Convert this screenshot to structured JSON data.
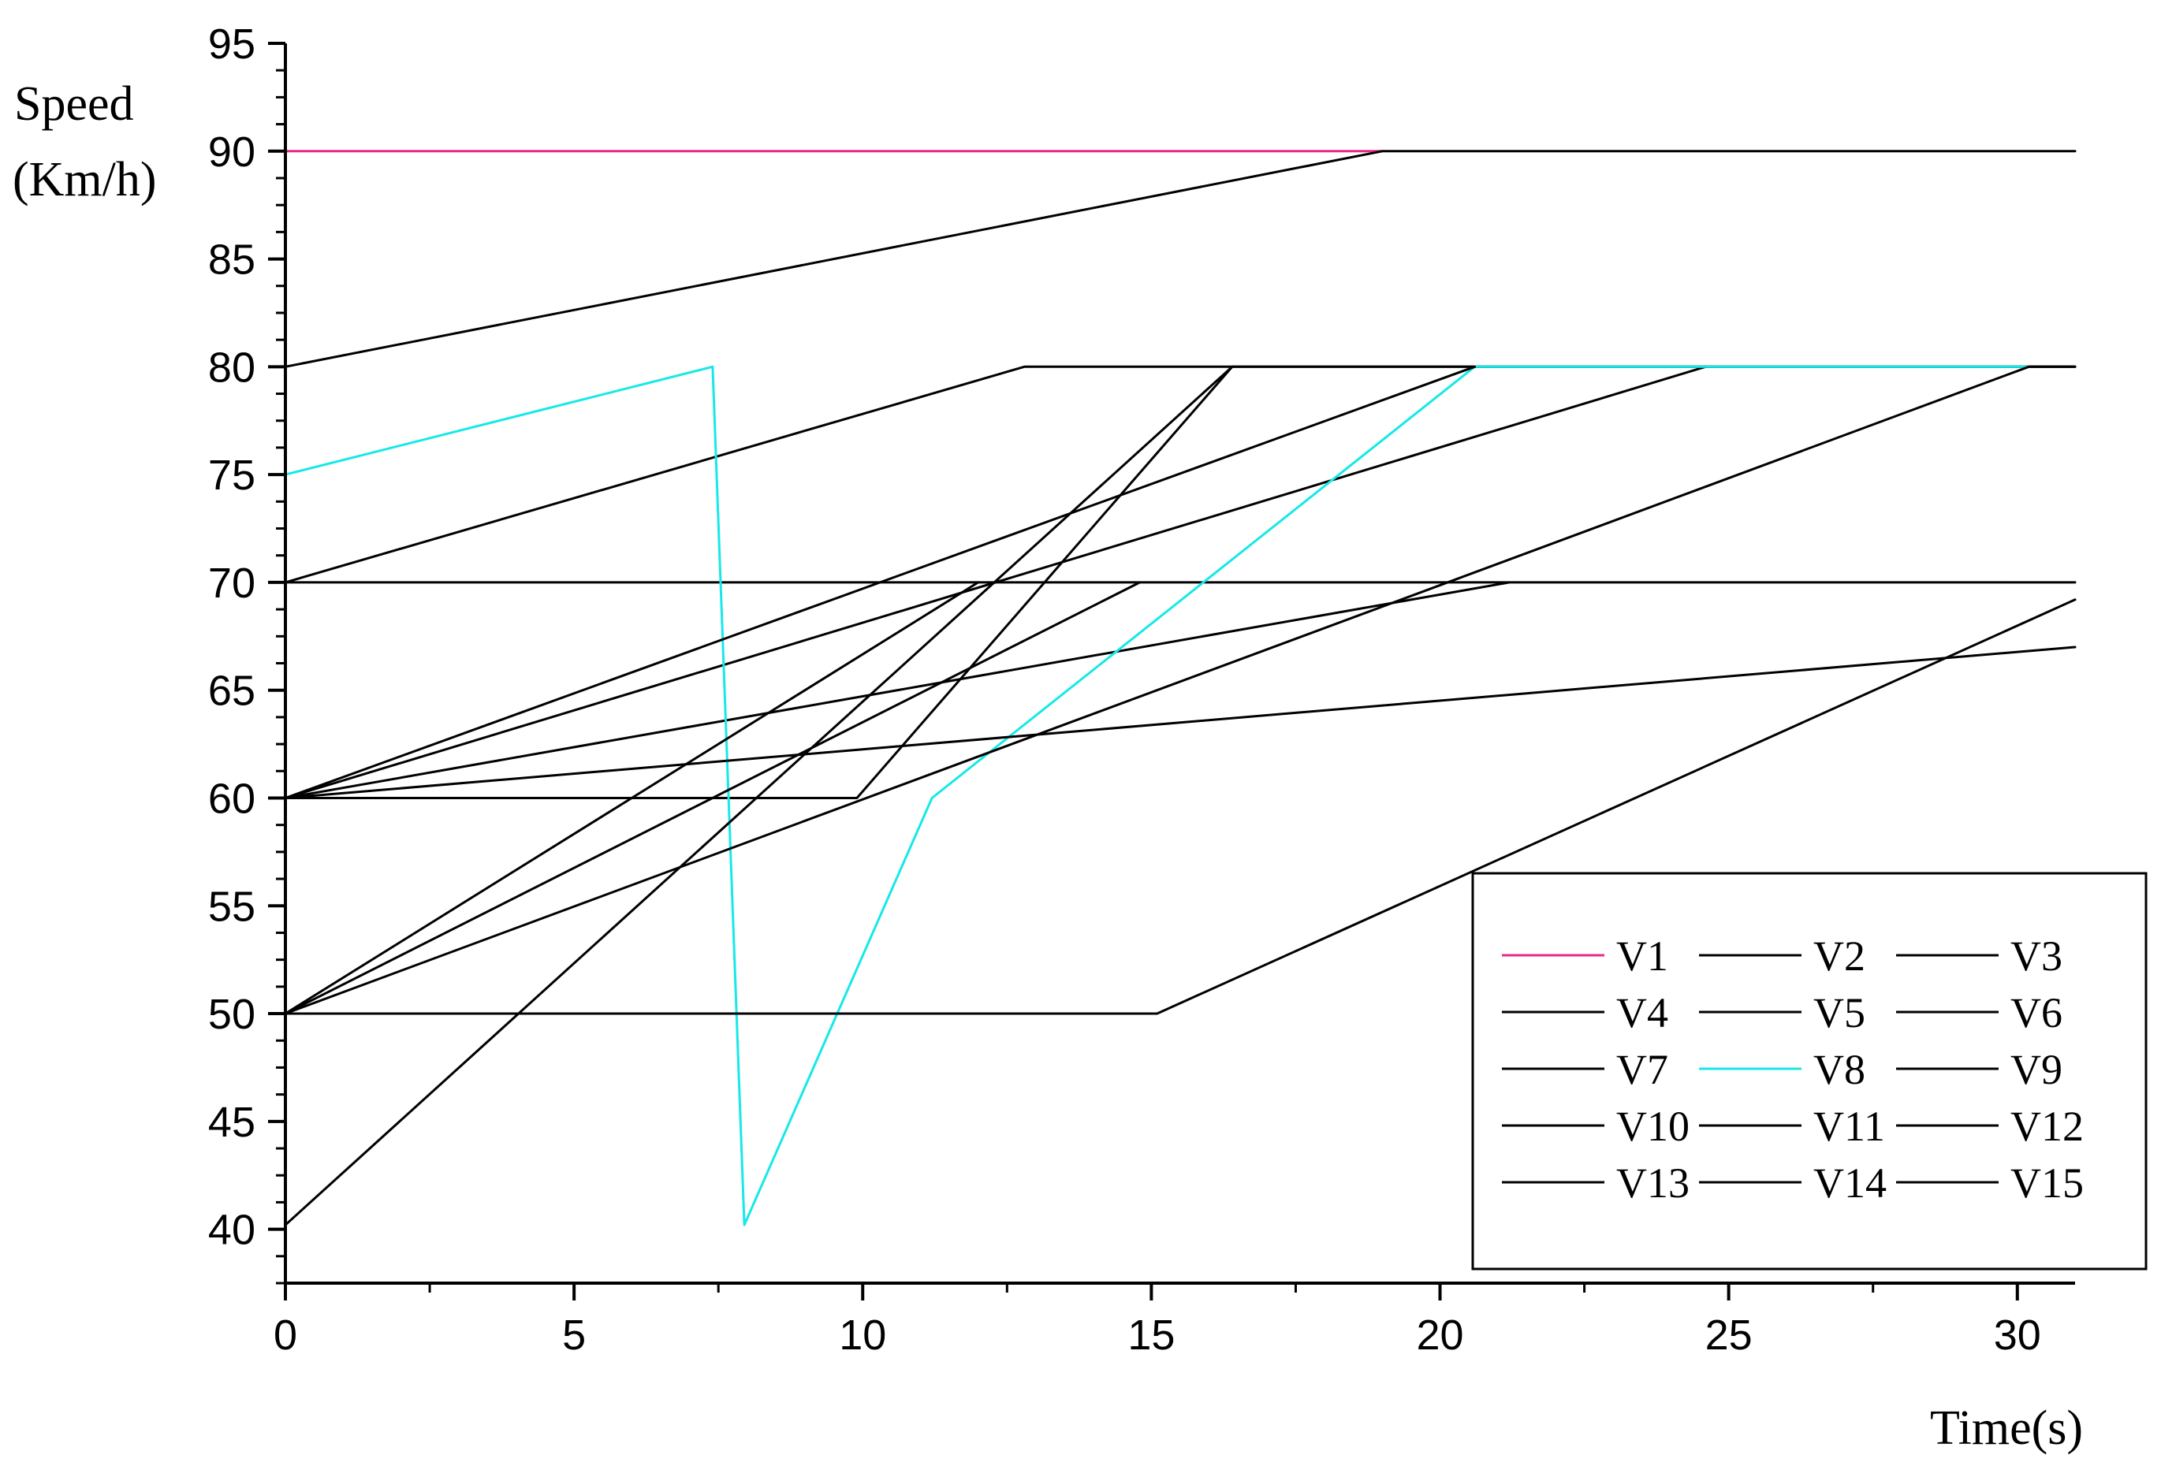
{
  "chart_data": {
    "type": "line",
    "ylabel": [
      "Speed",
      "(Km/h)"
    ],
    "xlabel": "Time(s)",
    "xlim": [
      0,
      31
    ],
    "ylim": [
      37.5,
      95
    ],
    "xticks": [
      0,
      5,
      10,
      15,
      20,
      25,
      30
    ],
    "yticks": [
      40,
      45,
      50,
      55,
      60,
      65,
      70,
      75,
      80,
      85,
      90,
      95
    ],
    "grid": false,
    "legend_position": "bottom-right",
    "series": [
      {
        "name": "V1",
        "color": "#e8288a",
        "points": [
          [
            0,
            90
          ],
          [
            19,
            90
          ]
        ]
      },
      {
        "name": "V2",
        "color": "#000000",
        "points": [
          [
            0,
            80
          ],
          [
            19,
            90
          ],
          [
            31,
            90
          ]
        ]
      },
      {
        "name": "V3",
        "color": "#000000",
        "points": [
          [
            0,
            70
          ],
          [
            12.8,
            80
          ],
          [
            31,
            80
          ]
        ]
      },
      {
        "name": "V4",
        "color": "#000000",
        "points": [
          [
            0,
            70
          ],
          [
            31,
            70
          ]
        ]
      },
      {
        "name": "V5",
        "color": "#000000",
        "points": [
          [
            0,
            60
          ],
          [
            9.9,
            60
          ],
          [
            16.4,
            80
          ],
          [
            31,
            80
          ]
        ]
      },
      {
        "name": "V6",
        "color": "#000000",
        "points": [
          [
            0,
            60
          ],
          [
            24.6,
            80
          ]
        ]
      },
      {
        "name": "V7",
        "color": "#000000",
        "points": [
          [
            0,
            60
          ],
          [
            21.2,
            70
          ]
        ]
      },
      {
        "name": "V8",
        "color": "#17e8e8",
        "points": [
          [
            0,
            75
          ],
          [
            7.4,
            80
          ],
          [
            7.95,
            40.2
          ],
          [
            11.2,
            60
          ],
          [
            20.6,
            80
          ],
          [
            30.2,
            80
          ]
        ]
      },
      {
        "name": "V9",
        "color": "#000000",
        "points": [
          [
            0,
            60
          ],
          [
            31,
            67
          ]
        ]
      },
      {
        "name": "V10",
        "color": "#000000",
        "points": [
          [
            0,
            50
          ],
          [
            12,
            70
          ]
        ]
      },
      {
        "name": "V11",
        "color": "#000000",
        "points": [
          [
            0,
            50
          ],
          [
            14.8,
            70
          ]
        ]
      },
      {
        "name": "V12",
        "color": "#000000",
        "points": [
          [
            0,
            50
          ],
          [
            30.2,
            80
          ],
          [
            31,
            80
          ]
        ]
      },
      {
        "name": "V13",
        "color": "#000000",
        "points": [
          [
            0,
            40.2
          ],
          [
            16.4,
            80
          ]
        ]
      },
      {
        "name": "V14",
        "color": "#000000",
        "points": [
          [
            0,
            50
          ],
          [
            15.1,
            50
          ],
          [
            31,
            69.2
          ]
        ]
      },
      {
        "name": "V15",
        "color": "#000000",
        "points": [
          [
            0,
            60
          ],
          [
            20.6,
            80
          ]
        ]
      }
    ]
  }
}
